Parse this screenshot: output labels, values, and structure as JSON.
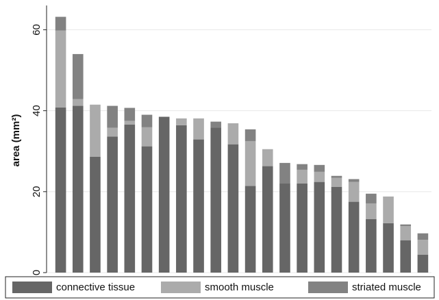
{
  "chart_data": {
    "type": "stacked_bar",
    "y_label": "area (mm²)",
    "categories": [
      null,
      null,
      null,
      null,
      null,
      null,
      null,
      null,
      null,
      null,
      null,
      null,
      null,
      null,
      null,
      null,
      null,
      null,
      null,
      null,
      null,
      null
    ],
    "series": [
      {
        "name": "connective tissue",
        "color": "#666666",
        "values": [
          40.8,
          41.2,
          28.6,
          33.6,
          36.6,
          31.2,
          38.5,
          36.4,
          32.9,
          35.8,
          31.7,
          21.4,
          26.3,
          22.0,
          22.0,
          22.4,
          21.2,
          17.5,
          13.2,
          12.2,
          8.0,
          4.4
        ]
      },
      {
        "name": "smooth muscle",
        "color": "#ababab",
        "values": [
          19.0,
          1.7,
          12.9,
          2.2,
          0.9,
          4.7,
          0,
          1.7,
          5.2,
          0,
          5.2,
          11.1,
          4.2,
          0,
          3.4,
          2.5,
          2.2,
          4.9,
          3.9,
          6.6,
          3.5,
          3.7
        ]
      },
      {
        "name": "striated muscle",
        "color": "#828282",
        "values": [
          3.4,
          11.1,
          0,
          5.4,
          3.2,
          3.1,
          0,
          0,
          0,
          1.5,
          0,
          2.9,
          0,
          5.1,
          1.4,
          1.7,
          0.5,
          0.7,
          2.4,
          0,
          0.4,
          1.6
        ]
      }
    ],
    "ylim": [
      0,
      66
    ],
    "yticks": [
      0,
      20,
      40,
      60
    ],
    "grid": true,
    "legend": "bottom"
  }
}
